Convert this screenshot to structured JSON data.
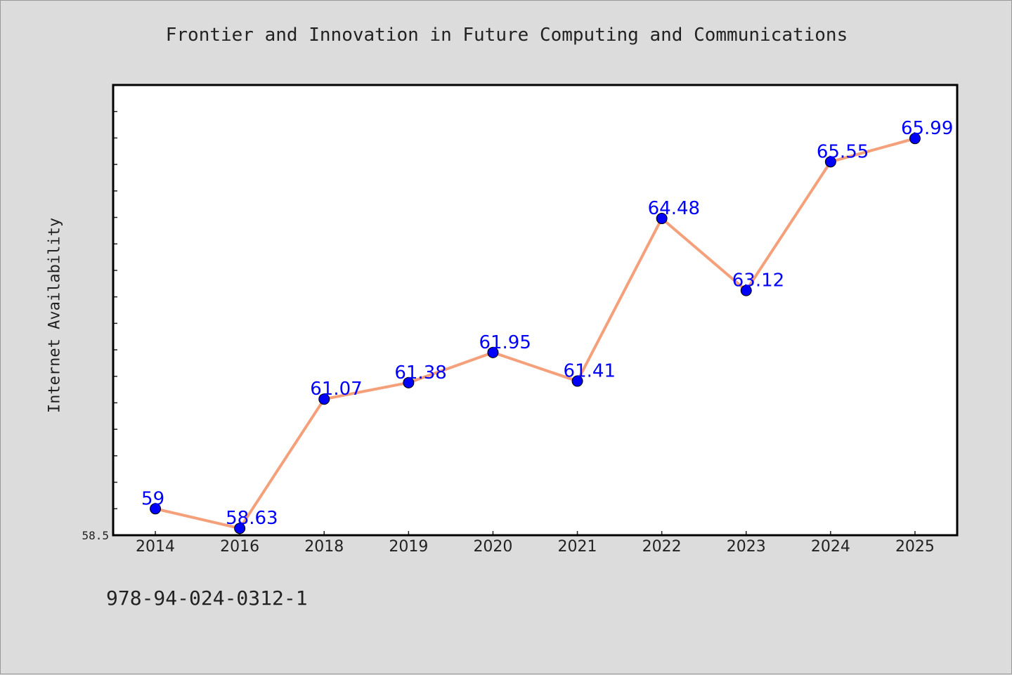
{
  "chart_data": {
    "type": "line",
    "title": "Frontier and Innovation in Future Computing and Communications",
    "xlabel": "",
    "ylabel": "Internet Availability",
    "categories": [
      "2014",
      "2016",
      "2018",
      "2019",
      "2020",
      "2021",
      "2022",
      "2023",
      "2024",
      "2025"
    ],
    "series": [
      {
        "values": [
          59,
          58.63,
          61.07,
          61.38,
          61.95,
          61.41,
          64.48,
          63.12,
          65.55,
          65.99
        ],
        "data_labels": [
          "59",
          "58.63",
          "61.07",
          "61.38",
          "61.95",
          "61.41",
          "64.48",
          "63.12",
          "65.55",
          "65.99"
        ],
        "line_color": "#f4a07a",
        "marker_color": "#0000ff"
      }
    ],
    "ylim": [
      58.5,
      67
    ],
    "ytick_labels": [
      "58.5"
    ],
    "grid": false,
    "legend": "none"
  },
  "footer": {
    "isbn": "978-94-024-0312-1"
  }
}
